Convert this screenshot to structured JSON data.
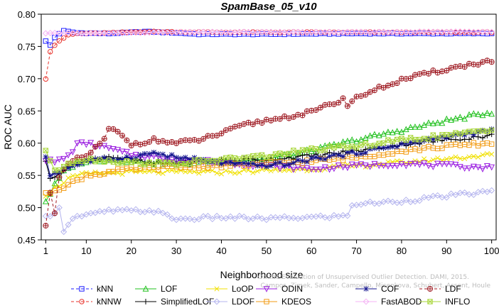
{
  "chart_data": {
    "type": "line",
    "title": "SpamBase_05_v10",
    "xlabel": "Neighborhood size",
    "ylabel": "ROC AUC",
    "xlim": [
      0,
      101
    ],
    "ylim": [
      0.45,
      0.8
    ],
    "xticks": [
      1,
      10,
      20,
      30,
      40,
      50,
      60,
      70,
      80,
      90,
      100
    ],
    "yticks": [
      "0.45",
      "0.50",
      "0.55",
      "0.60",
      "0.65",
      "0.70",
      "0.75",
      "0.80"
    ],
    "grid": false,
    "legend_position": "bottom",
    "watermark": [
      "Campos, Zimek, Sander, Campello, Micenkova, Schubert, Assent, Houle",
      "On the Evaluation of Unsupervised Outlier Detection. DAMI, 2015."
    ],
    "series": [
      {
        "name": "kNN",
        "color": "#1f1fff",
        "marker": "square",
        "dash": "4,3",
        "knots": [
          [
            1,
            0.758
          ],
          [
            2,
            0.752
          ],
          [
            3,
            0.764
          ],
          [
            4,
            0.77
          ],
          [
            5,
            0.774
          ],
          [
            8,
            0.771
          ],
          [
            15,
            0.77
          ],
          [
            23,
            0.773
          ],
          [
            30,
            0.771
          ],
          [
            35,
            0.769
          ],
          [
            50,
            0.769
          ],
          [
            70,
            0.77
          ],
          [
            100,
            0.77
          ]
        ]
      },
      {
        "name": "kNNW",
        "color": "#e8322b",
        "marker": "circle",
        "dash": "4,3",
        "knots": [
          [
            1,
            0.7
          ],
          [
            2,
            0.742
          ],
          [
            3,
            0.752
          ],
          [
            4,
            0.758
          ],
          [
            5,
            0.763
          ],
          [
            6,
            0.768
          ],
          [
            8,
            0.77
          ],
          [
            15,
            0.771
          ],
          [
            23,
            0.773
          ],
          [
            40,
            0.772
          ],
          [
            70,
            0.772
          ],
          [
            100,
            0.772
          ]
        ]
      },
      {
        "name": "LOF",
        "color": "#22c11f",
        "marker": "triangle",
        "dash": "",
        "knots": [
          [
            1,
            0.51
          ],
          [
            3,
            0.535
          ],
          [
            5,
            0.555
          ],
          [
            8,
            0.57
          ],
          [
            15,
            0.575
          ],
          [
            30,
            0.568
          ],
          [
            50,
            0.575
          ],
          [
            60,
            0.588
          ],
          [
            70,
            0.605
          ],
          [
            80,
            0.62
          ],
          [
            90,
            0.635
          ],
          [
            100,
            0.648
          ]
        ]
      },
      {
        "name": "SimplifiedLOF",
        "color": "#000000",
        "marker": "plus",
        "dash": "",
        "knots": [
          [
            1,
            0.57
          ],
          [
            2,
            0.545
          ],
          [
            4,
            0.555
          ],
          [
            8,
            0.57
          ],
          [
            15,
            0.58
          ],
          [
            25,
            0.568
          ],
          [
            40,
            0.573
          ],
          [
            50,
            0.575
          ],
          [
            60,
            0.58
          ],
          [
            70,
            0.588
          ],
          [
            80,
            0.598
          ],
          [
            90,
            0.605
          ],
          [
            100,
            0.612
          ]
        ]
      },
      {
        "name": "LoOP",
        "color": "#f0e000",
        "marker": "x",
        "dash": "",
        "knots": [
          [
            1,
            0.52
          ],
          [
            3,
            0.53
          ],
          [
            6,
            0.545
          ],
          [
            10,
            0.552
          ],
          [
            20,
            0.555
          ],
          [
            40,
            0.555
          ],
          [
            60,
            0.56
          ],
          [
            80,
            0.57
          ],
          [
            100,
            0.582
          ]
        ]
      },
      {
        "name": "LDOF",
        "color": "#b4b4ee",
        "marker": "diamond",
        "dash": "",
        "knots": [
          [
            1,
            0.485
          ],
          [
            4,
            0.498
          ],
          [
            5,
            0.465
          ],
          [
            7,
            0.485
          ],
          [
            10,
            0.488
          ],
          [
            15,
            0.495
          ],
          [
            20,
            0.495
          ],
          [
            25,
            0.495
          ],
          [
            30,
            0.482
          ],
          [
            40,
            0.485
          ],
          [
            50,
            0.483
          ],
          [
            60,
            0.485
          ],
          [
            68,
            0.487
          ],
          [
            69,
            0.505
          ],
          [
            80,
            0.51
          ],
          [
            90,
            0.518
          ],
          [
            100,
            0.525
          ]
        ]
      },
      {
        "name": "ODIN",
        "color": "#9b1fe0",
        "marker": "triangle-down",
        "dash": "",
        "knots": [
          [
            1,
            0.575
          ],
          [
            3,
            0.57
          ],
          [
            6,
            0.58
          ],
          [
            8,
            0.598
          ],
          [
            10,
            0.6
          ],
          [
            15,
            0.592
          ],
          [
            20,
            0.582
          ],
          [
            30,
            0.575
          ],
          [
            40,
            0.57
          ],
          [
            50,
            0.565
          ],
          [
            60,
            0.56
          ],
          [
            70,
            0.565
          ],
          [
            80,
            0.568
          ],
          [
            90,
            0.565
          ],
          [
            100,
            0.562
          ]
        ]
      },
      {
        "name": "KDEOS",
        "color": "#f29b13",
        "marker": "square",
        "dash": "",
        "knots": [
          [
            1,
            0.52
          ],
          [
            3,
            0.528
          ],
          [
            6,
            0.535
          ],
          [
            10,
            0.55
          ],
          [
            20,
            0.56
          ],
          [
            40,
            0.565
          ],
          [
            50,
            0.568
          ],
          [
            60,
            0.572
          ],
          [
            70,
            0.578
          ],
          [
            80,
            0.588
          ],
          [
            90,
            0.595
          ],
          [
            100,
            0.6
          ]
        ]
      },
      {
        "name": "COF",
        "color": "#13138e",
        "marker": "star",
        "dash": "",
        "knots": [
          [
            1,
            0.58
          ],
          [
            2,
            0.55
          ],
          [
            5,
            0.56
          ],
          [
            10,
            0.572
          ],
          [
            20,
            0.578
          ],
          [
            25,
            0.585
          ],
          [
            30,
            0.578
          ],
          [
            40,
            0.57
          ],
          [
            48,
            0.565
          ],
          [
            55,
            0.568
          ],
          [
            60,
            0.575
          ],
          [
            70,
            0.585
          ],
          [
            80,
            0.598
          ],
          [
            90,
            0.61
          ],
          [
            100,
            0.62
          ]
        ]
      },
      {
        "name": "FastABOD",
        "color": "#f4b3f4",
        "marker": "diamond",
        "dash": "",
        "knots": [
          [
            1,
            0.77
          ],
          [
            5,
            0.771
          ],
          [
            10,
            0.77
          ],
          [
            20,
            0.771
          ],
          [
            30,
            0.772
          ],
          [
            50,
            0.772
          ],
          [
            70,
            0.772
          ],
          [
            100,
            0.773
          ]
        ]
      },
      {
        "name": "LDF",
        "color": "#a01d25",
        "marker": "circle-plus",
        "dash": "4,3",
        "knots": [
          [
            1,
            0.475
          ],
          [
            2,
            0.525
          ],
          [
            3,
            0.49
          ],
          [
            4,
            0.545
          ],
          [
            6,
            0.568
          ],
          [
            8,
            0.575
          ],
          [
            10,
            0.58
          ],
          [
            14,
            0.605
          ],
          [
            15,
            0.62
          ],
          [
            16,
            0.622
          ],
          [
            18,
            0.61
          ],
          [
            20,
            0.598
          ],
          [
            25,
            0.605
          ],
          [
            30,
            0.6
          ],
          [
            35,
            0.605
          ],
          [
            40,
            0.615
          ],
          [
            45,
            0.628
          ],
          [
            50,
            0.635
          ],
          [
            60,
            0.648
          ],
          [
            66,
            0.665
          ],
          [
            67,
            0.67
          ],
          [
            68,
            0.655
          ],
          [
            69,
            0.668
          ],
          [
            75,
            0.685
          ],
          [
            80,
            0.698
          ],
          [
            90,
            0.715
          ],
          [
            100,
            0.728
          ]
        ]
      },
      {
        "name": "INFLO",
        "color": "#a8d63a",
        "marker": "box-x",
        "dash": "",
        "knots": [
          [
            1,
            0.59
          ],
          [
            3,
            0.555
          ],
          [
            6,
            0.57
          ],
          [
            10,
            0.575
          ],
          [
            20,
            0.57
          ],
          [
            30,
            0.568
          ],
          [
            40,
            0.575
          ],
          [
            50,
            0.58
          ],
          [
            60,
            0.59
          ],
          [
            70,
            0.595
          ],
          [
            80,
            0.605
          ],
          [
            90,
            0.612
          ],
          [
            100,
            0.62
          ]
        ]
      }
    ]
  }
}
